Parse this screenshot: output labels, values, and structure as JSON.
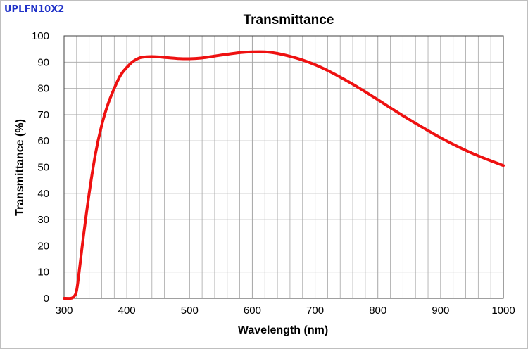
{
  "product_label": "UPLFN10X2",
  "colors": {
    "curve": "#ee1111",
    "grid": "#a6a6a6",
    "axis": "#404040",
    "label": "#2032c8"
  },
  "chart_data": {
    "type": "line",
    "title": "Transmittance",
    "xlabel": "Wavelength (nm)",
    "ylabel": "Transmittance (%)",
    "xlim": [
      300,
      1000
    ],
    "ylim": [
      0,
      100
    ],
    "x_ticks": [
      300,
      400,
      500,
      600,
      700,
      800,
      900,
      1000
    ],
    "x_tick_labels": [
      "300",
      "400",
      "500",
      "600",
      "700",
      "800",
      "900",
      "1000"
    ],
    "y_ticks": [
      0,
      10,
      20,
      30,
      40,
      50,
      60,
      70,
      80,
      90,
      100
    ],
    "y_tick_labels": [
      "0",
      "10",
      "20",
      "30",
      "40",
      "50",
      "60",
      "70",
      "80",
      "90",
      "100"
    ],
    "x_minor_step": 20,
    "y_minor_step": 10,
    "grid": true,
    "series": [
      {
        "name": "Transmittance",
        "x": [
          300,
          310,
          315,
          320,
          325,
          330,
          340,
          350,
          360,
          370,
          380,
          390,
          400,
          410,
          420,
          430,
          440,
          450,
          460,
          480,
          500,
          520,
          540,
          560,
          580,
          600,
          620,
          640,
          660,
          680,
          700,
          720,
          740,
          760,
          780,
          800,
          820,
          840,
          860,
          880,
          900,
          920,
          940,
          960,
          980,
          1000
        ],
        "values": [
          0,
          0,
          0.5,
          3,
          12,
          22,
          40,
          55,
          66,
          74,
          80,
          85,
          88,
          90.3,
          91.6,
          92,
          92.1,
          92,
          91.8,
          91.4,
          91.3,
          91.6,
          92.3,
          93,
          93.6,
          93.9,
          93.9,
          93.3,
          92.2,
          90.8,
          89,
          86.8,
          84.3,
          81.6,
          78.7,
          75.7,
          72.6,
          69.6,
          66.7,
          63.9,
          61.2,
          58.7,
          56.4,
          54.3,
          52.4,
          50.6
        ]
      }
    ]
  }
}
